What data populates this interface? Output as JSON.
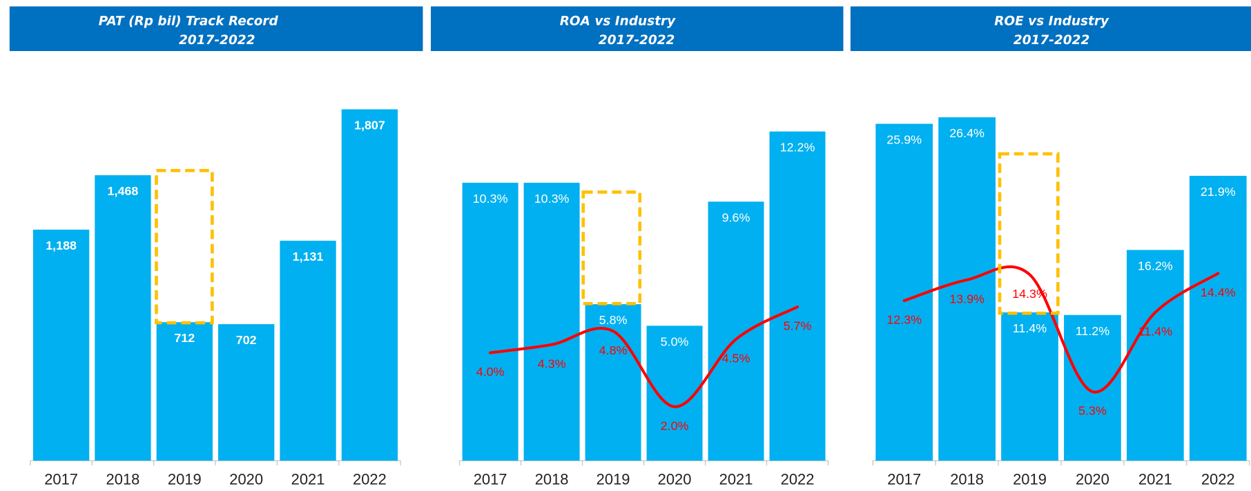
{
  "chart_data": [
    {
      "type": "bar",
      "title": "PAT (Rp bil) Track Record",
      "subtitle": "2017-2022",
      "categories": [
        "2017",
        "2018",
        "2019",
        "2020",
        "2021",
        "2022"
      ],
      "ylim": [
        0,
        2000
      ],
      "series": [
        {
          "type": "bar",
          "color": "#00b0f0",
          "values": [
            1188,
            1468,
            712,
            702,
            1131,
            1807
          ],
          "value_labels": [
            "1,188",
            "1,468",
            "712",
            "702",
            "1,131",
            "1,807"
          ]
        }
      ]
    },
    {
      "type": "combo",
      "title": "ROA vs Industry",
      "subtitle": "2017-2022",
      "categories": [
        "2017",
        "2018",
        "2019",
        "2020",
        "2021",
        "2022"
      ],
      "ylim": [
        0,
        14
      ],
      "series": [
        {
          "type": "bar",
          "color": "#00b0f0",
          "values": [
            10.3,
            10.3,
            5.8,
            5.0,
            9.6,
            12.2
          ],
          "value_labels": [
            "10.3%",
            "10.3%",
            "5.8%",
            "5.0%",
            "9.6%",
            "12.2%"
          ]
        },
        {
          "type": "line",
          "color": "#ff0000",
          "values": [
            4.0,
            4.3,
            4.8,
            2.0,
            4.5,
            5.7
          ],
          "value_labels": [
            "4.0%",
            "4.3%",
            "4.8%",
            "2.0%",
            "4.5%",
            "5.7%"
          ]
        }
      ]
    },
    {
      "type": "combo",
      "title": "ROE vs Industry",
      "subtitle": "2017-2022",
      "categories": [
        "2017",
        "2018",
        "2019",
        "2020",
        "2021",
        "2022"
      ],
      "ylim": [
        0,
        28
      ],
      "series": [
        {
          "type": "bar",
          "color": "#00b0f0",
          "values": [
            25.9,
            26.4,
            11.4,
            11.2,
            16.2,
            21.9
          ],
          "value_labels": [
            "25.9%",
            "26.4%",
            "11.4%",
            "11.2%",
            "16.2%",
            "21.9%"
          ]
        },
        {
          "type": "line",
          "color": "#ff0000",
          "values": [
            12.3,
            13.9,
            14.3,
            5.3,
            11.4,
            14.4
          ],
          "value_labels": [
            "12.3%",
            "13.9%",
            "14.3%",
            "5.3%",
            "11.4%",
            "14.4%"
          ]
        }
      ]
    }
  ]
}
